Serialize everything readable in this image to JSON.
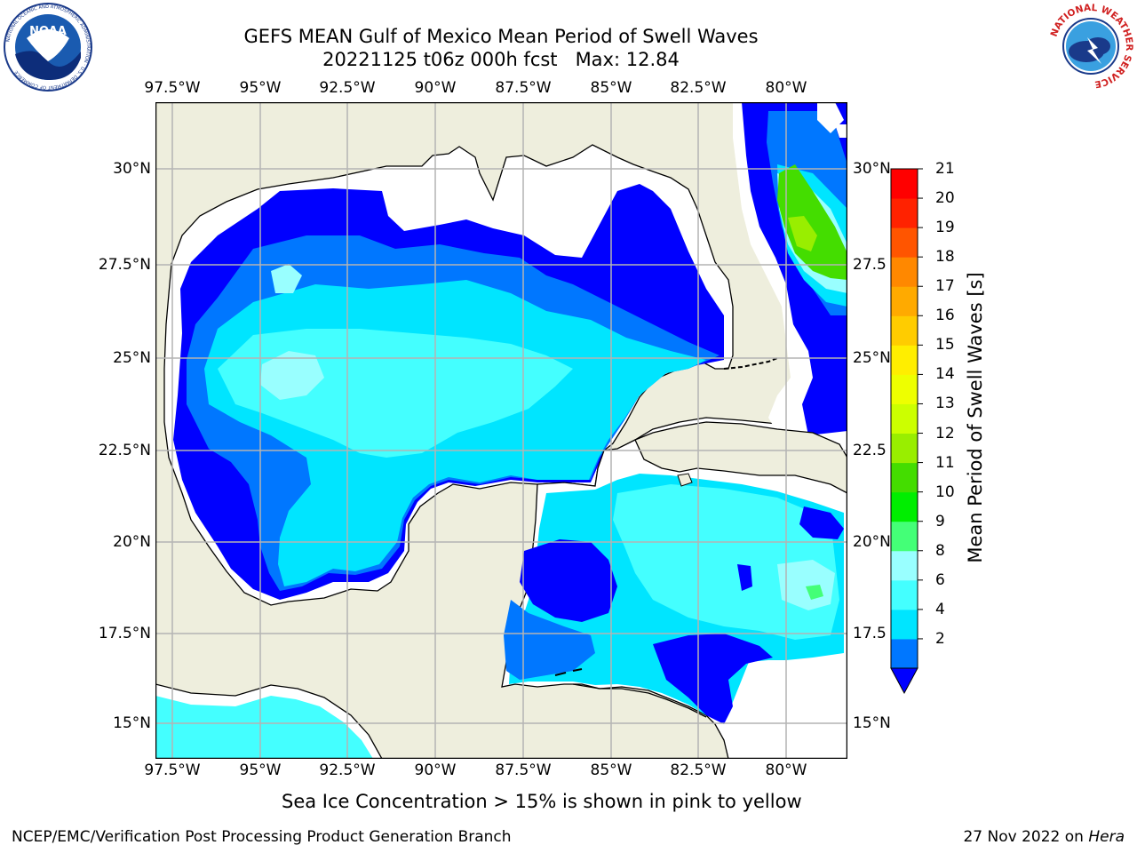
{
  "title": {
    "line1": "GEFS MEAN Gulf of Mexico Mean Period of Swell Waves",
    "line2": "20221125 t06z 000h fcst   Max: 12.84"
  },
  "map": {
    "lon_labels": [
      "97.5°W",
      "95°W",
      "92.5°W",
      "90°W",
      "87.5°W",
      "85°W",
      "82.5°W",
      "80°W"
    ],
    "lat_labels": [
      "30°N",
      "27.5°N",
      "25°N",
      "22.5°N",
      "20°N",
      "17.5°N",
      "15°N"
    ],
    "lat_labels_right": [
      "30°N",
      "27.5",
      "25°N",
      "22.5",
      "20°N",
      "17.5",
      "15°N"
    ],
    "land_color": "#eeeedd",
    "grid_color": "#b4b4b4"
  },
  "colorbar": {
    "label": "Mean Period of Swell Waves [s]",
    "ticks": [
      "21",
      "20",
      "19",
      "18",
      "17",
      "16",
      "15",
      "14",
      "13",
      "12",
      "11",
      "10",
      "9",
      "8",
      "6",
      "4",
      "2"
    ],
    "colors": [
      "#0000ff",
      "#0077ff",
      "#00e5ff",
      "#44ffff",
      "#99ffff",
      "#44ff77",
      "#00ee00",
      "#44dd00",
      "#99ee00",
      "#ccff00",
      "#eeff00",
      "#ffee00",
      "#ffcc00",
      "#ffaa00",
      "#ff8800",
      "#ff5500",
      "#ff2200",
      "#ff0000"
    ]
  },
  "subtitle": "Sea Ice Concentration > 15% is shown in pink to yellow",
  "footer": {
    "left": "NCEP/EMC/Verification Post Processing Product Generation Branch",
    "date": "27 Nov 2022 on ",
    "machine": "Hera"
  },
  "logos": {
    "left": "NOAA",
    "left_ring": "NATIONAL OCEANIC AND ATMOSPHERIC ADMINISTRATION · U.S. DEPARTMENT OF COMMERCE",
    "right_ring": "NATIONAL WEATHER SERVICE"
  }
}
